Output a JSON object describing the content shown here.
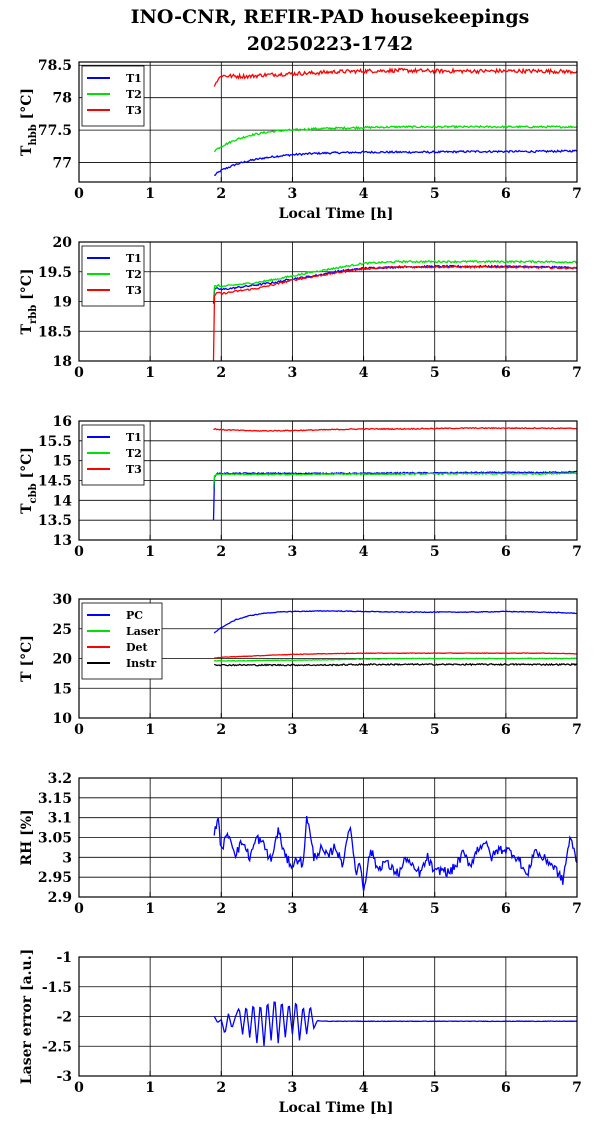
{
  "title_line1": "INO-CNR, REFIR-PAD housekeepings",
  "title_line2": "20250223-1742",
  "chart_data": [
    {
      "type": "line",
      "ylabel": "T",
      "ylabel_sub": "hbb",
      "ylabel_unit": "[°C]",
      "xlabel": "Local Time [h]",
      "xlim": [
        0,
        7
      ],
      "ylim": [
        76.7,
        78.55
      ],
      "xticks": [
        "0",
        "1",
        "2",
        "3",
        "4",
        "5",
        "6",
        "7"
      ],
      "yticks": [
        "77",
        "77.5",
        "78",
        "78.5"
      ],
      "ytick_values": [
        77,
        77.5,
        78,
        78.5
      ],
      "legend": "top-left",
      "grid": true,
      "x": [
        1.9,
        2.0,
        2.2,
        2.4,
        2.6,
        2.8,
        3.0,
        3.3,
        3.6,
        4.0,
        4.5,
        5.0,
        5.5,
        6.0,
        6.5,
        7.0
      ],
      "series": [
        {
          "name": "T1",
          "color": "#0000ff",
          "values": [
            76.8,
            76.88,
            76.97,
            77.03,
            77.07,
            77.1,
            77.12,
            77.14,
            77.15,
            77.16,
            77.16,
            77.16,
            77.17,
            77.17,
            77.17,
            77.18
          ],
          "noise": 0.015
        },
        {
          "name": "T2",
          "color": "#00e000",
          "values": [
            77.18,
            77.25,
            77.35,
            77.42,
            77.46,
            77.49,
            77.5,
            77.52,
            77.53,
            77.54,
            77.55,
            77.55,
            77.55,
            77.55,
            77.55,
            77.55
          ],
          "noise": 0.015
        },
        {
          "name": "T3",
          "color": "#ff0000",
          "values": [
            78.2,
            78.34,
            78.33,
            78.33,
            78.35,
            78.36,
            78.37,
            78.38,
            78.4,
            78.41,
            78.42,
            78.41,
            78.41,
            78.41,
            78.41,
            78.4
          ],
          "noise": 0.03
        }
      ]
    },
    {
      "type": "line",
      "ylabel": "T",
      "ylabel_sub": "rbb",
      "ylabel_unit": "[°C]",
      "xlabel": "",
      "xlim": [
        0,
        7
      ],
      "ylim": [
        18,
        20
      ],
      "xticks": [
        "0",
        "1",
        "2",
        "3",
        "4",
        "5",
        "6",
        "7"
      ],
      "yticks": [
        "18",
        "18.5",
        "19",
        "19.5",
        "20"
      ],
      "ytick_values": [
        18,
        18.5,
        19,
        19.5,
        20
      ],
      "legend": "top-left",
      "grid": true,
      "x": [
        1.89,
        1.9,
        1.95,
        2.0,
        2.2,
        2.5,
        2.8,
        3.0,
        3.3,
        3.6,
        4.0,
        4.5,
        5.0,
        5.5,
        6.0,
        6.5,
        7.0
      ],
      "series": [
        {
          "name": "T1",
          "color": "#0000ff",
          "values": [
            18.95,
            19.2,
            19.22,
            19.2,
            19.23,
            19.28,
            19.33,
            19.38,
            19.43,
            19.5,
            19.56,
            19.58,
            19.59,
            19.59,
            19.59,
            19.58,
            19.57
          ],
          "noise": 0.015
        },
        {
          "name": "T2",
          "color": "#00e000",
          "values": [
            19.0,
            19.25,
            19.27,
            19.25,
            19.28,
            19.32,
            19.38,
            19.43,
            19.5,
            19.56,
            19.64,
            19.67,
            19.67,
            19.67,
            19.67,
            19.67,
            19.66
          ],
          "noise": 0.015
        },
        {
          "name": "T3",
          "color": "#ff0000",
          "values": [
            18.0,
            19.1,
            19.15,
            19.13,
            19.17,
            19.22,
            19.3,
            19.36,
            19.42,
            19.48,
            19.55,
            19.58,
            19.58,
            19.58,
            19.58,
            19.57,
            19.56
          ],
          "noise": 0.015
        }
      ]
    },
    {
      "type": "line",
      "ylabel": "T",
      "ylabel_sub": "cbb",
      "ylabel_unit": "[°C]",
      "xlabel": "",
      "xlim": [
        0,
        7
      ],
      "ylim": [
        13,
        16
      ],
      "xticks": [
        "0",
        "1",
        "2",
        "3",
        "4",
        "5",
        "6",
        "7"
      ],
      "yticks": [
        "13",
        "13.5",
        "14",
        "14.5",
        "15",
        "15.5",
        "16"
      ],
      "ytick_values": [
        13,
        13.5,
        14,
        14.5,
        15,
        15.5,
        16
      ],
      "legend": "top-left",
      "grid": true,
      "x": [
        1.89,
        1.9,
        1.95,
        2.0,
        2.5,
        3.0,
        3.5,
        4.0,
        4.5,
        5.0,
        5.5,
        6.0,
        6.5,
        7.0
      ],
      "series": [
        {
          "name": "T1",
          "color": "#0000ff",
          "values": [
            13.5,
            14.6,
            14.68,
            14.68,
            14.68,
            14.68,
            14.68,
            14.68,
            14.69,
            14.69,
            14.7,
            14.7,
            14.7,
            14.72
          ],
          "noise": 0.015
        },
        {
          "name": "T2",
          "color": "#00e000",
          "values": [
            14.3,
            14.6,
            14.66,
            14.66,
            14.65,
            14.65,
            14.66,
            14.66,
            14.66,
            14.67,
            14.67,
            14.67,
            14.67,
            14.69
          ],
          "noise": 0.015
        },
        {
          "name": "T3",
          "color": "#ff0000",
          "values": [
            15.78,
            15.8,
            15.79,
            15.78,
            15.75,
            15.76,
            15.78,
            15.8,
            15.8,
            15.81,
            15.82,
            15.82,
            15.82,
            15.81
          ],
          "noise": 0.012
        }
      ]
    },
    {
      "type": "line",
      "ylabel": "T [°C]",
      "ylabel_sub": "",
      "ylabel_unit": "",
      "xlabel": "",
      "xlim": [
        0,
        7
      ],
      "ylim": [
        10,
        30
      ],
      "xticks": [
        "0",
        "1",
        "2",
        "3",
        "4",
        "5",
        "6",
        "7"
      ],
      "yticks": [
        "10",
        "15",
        "20",
        "25",
        "30"
      ],
      "ytick_values": [
        10,
        15,
        20,
        25,
        30
      ],
      "legend": "top-left",
      "grid": true,
      "x": [
        1.9,
        2.0,
        2.2,
        2.4,
        2.6,
        2.8,
        3.0,
        3.5,
        4.0,
        4.5,
        5.0,
        5.5,
        6.0,
        6.5,
        7.0
      ],
      "series": [
        {
          "name": "PC",
          "color": "#0000ff",
          "values": [
            24.3,
            25.2,
            26.5,
            27.2,
            27.6,
            27.8,
            27.9,
            28.0,
            27.9,
            27.8,
            27.8,
            27.8,
            27.9,
            27.8,
            27.6
          ],
          "noise": 0.06
        },
        {
          "name": "Laser",
          "color": "#00e000",
          "values": [
            19.6,
            19.6,
            19.6,
            19.6,
            19.7,
            19.7,
            19.7,
            19.8,
            19.9,
            20.0,
            20.0,
            20.0,
            20.0,
            20.0,
            20.0
          ],
          "noise": 0.05
        },
        {
          "name": "Det",
          "color": "#ff0000",
          "values": [
            20.1,
            20.2,
            20.3,
            20.4,
            20.5,
            20.6,
            20.7,
            20.8,
            20.9,
            20.9,
            20.9,
            20.9,
            20.9,
            20.9,
            20.8
          ],
          "noise": 0.04
        },
        {
          "name": "Instr",
          "color": "#000000",
          "values": [
            19.0,
            18.9,
            18.9,
            18.9,
            18.9,
            18.9,
            18.9,
            18.9,
            19.0,
            19.0,
            19.0,
            19.0,
            19.0,
            19.0,
            19.0
          ],
          "noise": 0.12
        }
      ]
    },
    {
      "type": "line",
      "ylabel": "RH [%]",
      "ylabel_sub": "",
      "ylabel_unit": "",
      "xlabel": "",
      "xlim": [
        0,
        7
      ],
      "ylim": [
        2.9,
        3.2
      ],
      "xticks": [
        "0",
        "1",
        "2",
        "3",
        "4",
        "5",
        "6",
        "7"
      ],
      "yticks": [
        "2.9",
        "2.95",
        "3",
        "3.05",
        "3.1",
        "3.15",
        "3.2"
      ],
      "ytick_values": [
        2.9,
        2.95,
        3.0,
        3.05,
        3.1,
        3.15,
        3.2
      ],
      "legend": "none",
      "grid": true,
      "x": [
        1.9,
        1.95,
        2.0,
        2.1,
        2.2,
        2.3,
        2.4,
        2.5,
        2.6,
        2.7,
        2.8,
        2.9,
        3.0,
        3.1,
        3.15,
        3.2,
        3.3,
        3.4,
        3.5,
        3.6,
        3.7,
        3.8,
        3.9,
        3.95,
        4.0,
        4.1,
        4.2,
        4.3,
        4.4,
        4.5,
        4.6,
        4.7,
        4.8,
        4.9,
        5.0,
        5.1,
        5.2,
        5.3,
        5.4,
        5.5,
        5.6,
        5.7,
        5.8,
        5.9,
        6.0,
        6.1,
        6.2,
        6.3,
        6.4,
        6.5,
        6.6,
        6.7,
        6.8,
        6.9,
        7.0
      ],
      "series": [
        {
          "name": "RH",
          "color": "#0000ff",
          "values": [
            3.06,
            3.1,
            3.02,
            3.06,
            3.01,
            3.04,
            3.0,
            3.05,
            3.03,
            2.99,
            3.07,
            3.0,
            2.98,
            3.0,
            2.97,
            3.11,
            3.0,
            3.02,
            3.0,
            3.03,
            2.98,
            3.08,
            2.96,
            2.99,
            2.92,
            3.02,
            2.97,
            2.99,
            2.97,
            2.96,
            3.0,
            2.97,
            2.96,
            3.0,
            2.96,
            2.97,
            2.96,
            2.98,
            3.01,
            2.98,
            3.02,
            3.04,
            3.0,
            3.02,
            3.02,
            3.01,
            2.99,
            2.95,
            3.02,
            3.0,
            2.99,
            2.97,
            2.94,
            3.05,
            2.99
          ],
          "noise": 0.012
        }
      ]
    },
    {
      "type": "line",
      "ylabel": "Laser error [a.u.]",
      "ylabel_sub": "",
      "ylabel_unit": "",
      "xlabel": "Local Time [h]",
      "xlim": [
        0,
        7
      ],
      "ylim": [
        -3,
        -1
      ],
      "xticks": [
        "0",
        "1",
        "2",
        "3",
        "4",
        "5",
        "6",
        "7"
      ],
      "yticks": [
        "-3",
        "-2.5",
        "-2",
        "-1.5",
        "-1"
      ],
      "ytick_values": [
        -3,
        -2.5,
        -2,
        -1.5,
        -1
      ],
      "legend": "none",
      "grid": true,
      "x": [
        1.9,
        1.95,
        2.0,
        2.05,
        2.1,
        2.15,
        2.2,
        2.25,
        2.3,
        2.35,
        2.4,
        2.45,
        2.5,
        2.55,
        2.6,
        2.65,
        2.7,
        2.75,
        2.8,
        2.85,
        2.9,
        2.95,
        3.0,
        3.05,
        3.1,
        3.15,
        3.2,
        3.25,
        3.3,
        3.35,
        3.5,
        4.0,
        4.5,
        5.0,
        5.5,
        6.0,
        6.5,
        7.0
      ],
      "series": [
        {
          "name": "Laser error",
          "color": "#0000ff",
          "values": [
            -2.0,
            -2.1,
            -2.05,
            -2.3,
            -1.95,
            -2.2,
            -2.0,
            -1.85,
            -2.3,
            -1.8,
            -2.35,
            -1.75,
            -2.45,
            -1.75,
            -2.5,
            -1.7,
            -2.4,
            -1.65,
            -2.45,
            -1.7,
            -2.35,
            -1.75,
            -2.3,
            -1.7,
            -2.4,
            -1.8,
            -2.3,
            -1.8,
            -2.2,
            -2.07,
            -2.08,
            -2.08,
            -2.08,
            -2.08,
            -2.08,
            -2.08,
            -2.08,
            -2.08
          ],
          "noise": 0.004
        }
      ]
    }
  ]
}
